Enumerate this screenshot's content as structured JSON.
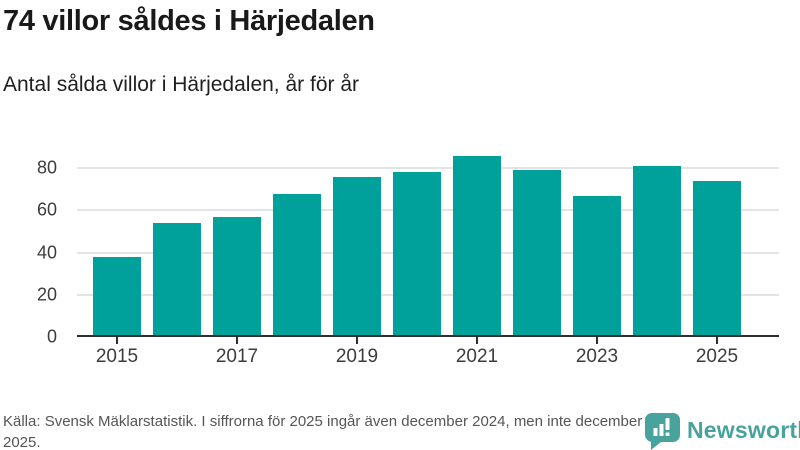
{
  "header": {
    "title": "74 villor såldes i Härjedalen",
    "subtitle": "Antal sålda villor i Härjedalen, år för år"
  },
  "chart_data": {
    "type": "bar",
    "categories": [
      2015,
      2016,
      2017,
      2018,
      2019,
      2020,
      2021,
      2022,
      2023,
      2024,
      2025
    ],
    "values": [
      38,
      54,
      57,
      68,
      76,
      78,
      86,
      79,
      67,
      81,
      74
    ],
    "title": "74 villor såldes i Härjedalen",
    "subtitle": "Antal sålda villor i Härjedalen, år för år",
    "xlabel": "",
    "ylabel": "",
    "ylim": [
      0,
      91
    ],
    "yticks": [
      0,
      20,
      40,
      60,
      80
    ],
    "xticks": [
      2015,
      2017,
      2019,
      2021,
      2023,
      2025
    ],
    "grid": true,
    "legend": "none",
    "bar_color": "#00a19b"
  },
  "footer": {
    "source_note": "Källa: Svensk Mäklarstatistik. I siffrorna för 2025 ingår även december 2024, men inte december 2025.",
    "logo_text": "Newsworthy"
  },
  "colors": {
    "accent": "#00a19b",
    "logo_teal": "#48a39d",
    "grid": "#e4e4e4",
    "axis": "#2f2f2f"
  }
}
